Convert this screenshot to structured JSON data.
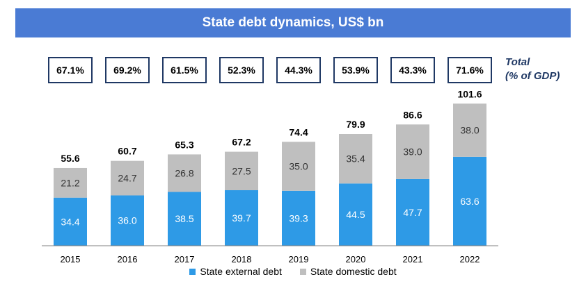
{
  "title": "State debt dynamics, US$ bn",
  "gdp_label_line1": "Total",
  "gdp_label_line2": "(% of GDP)",
  "gdp_ratios": [
    "67.1%",
    "69.2%",
    "61.5%",
    "52.3%",
    "44.3%",
    "53.9%",
    "43.3%",
    "71.6%"
  ],
  "colors": {
    "banner": "#4a7bd4",
    "external": "#2e9ae6",
    "domestic": "#bfbfbf",
    "box_border": "#1f3864"
  },
  "chart_data": {
    "type": "bar",
    "stacked": true,
    "title": "State debt dynamics, US$ bn",
    "categories": [
      "2015",
      "2016",
      "2017",
      "2018",
      "2019",
      "2020",
      "2021",
      "2022"
    ],
    "series": [
      {
        "name": "State external debt",
        "values": [
          34.4,
          36.0,
          38.5,
          39.7,
          39.3,
          44.5,
          47.7,
          63.6
        ]
      },
      {
        "name": "State domestic debt",
        "values": [
          21.2,
          24.7,
          26.8,
          27.5,
          35.0,
          35.4,
          39.0,
          38.0
        ]
      }
    ],
    "totals": [
      "55.6",
      "60.7",
      "65.3",
      "67.2",
      "74.4",
      "79.9",
      "86.6",
      "101.6"
    ],
    "ylim": [
      0,
      110
    ],
    "grid": false,
    "legend_position": "bottom"
  }
}
